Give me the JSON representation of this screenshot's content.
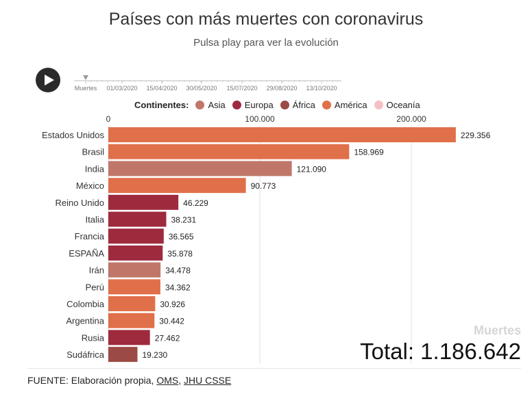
{
  "title": "Países con más muertes con coronavirus",
  "subtitle": "Pulsa play para ver la evolución",
  "timeline": {
    "label": "Muertes",
    "dates": [
      "01/03/2020",
      "15/04/2020",
      "30/05/2020",
      "15/07/2020",
      "29/08/2020",
      "13/10/2020"
    ]
  },
  "legend": {
    "title": "Continentes:",
    "items": [
      {
        "label": "Asia",
        "color": "#c0776a"
      },
      {
        "label": "Europa",
        "color": "#9e2a3e"
      },
      {
        "label": "África",
        "color": "#9c4a45"
      },
      {
        "label": "América",
        "color": "#e0704a"
      },
      {
        "label": "Oceanía",
        "color": "#f4c0c4"
      }
    ]
  },
  "chart_data": {
    "type": "bar",
    "orientation": "horizontal",
    "categories": [
      "Estados Unidos",
      "Brasil",
      "India",
      "México",
      "Reino Unido",
      "Italia",
      "Francia",
      "ESPAÑA",
      "Irán",
      "Perú",
      "Colombia",
      "Argentina",
      "Rusia",
      "Sudáfrica"
    ],
    "values": [
      229356,
      158969,
      121090,
      90773,
      46229,
      38231,
      36565,
      35878,
      34478,
      34362,
      30926,
      30442,
      27462,
      19230
    ],
    "value_labels": [
      "229.356",
      "158.969",
      "121.090",
      "90.773",
      "46.229",
      "38.231",
      "36.565",
      "35.878",
      "34.478",
      "34.362",
      "30.926",
      "30.442",
      "27.462",
      "19.230"
    ],
    "continents": [
      "América",
      "América",
      "Asia",
      "América",
      "Europa",
      "Europa",
      "Europa",
      "Europa",
      "Asia",
      "América",
      "América",
      "América",
      "Europa",
      "África"
    ],
    "xlim": [
      0,
      240000
    ],
    "xticks": [
      0,
      100000,
      200000
    ],
    "xtick_labels": [
      "0",
      "100.000",
      "200.000"
    ],
    "grid": true
  },
  "counter": {
    "label": "Muertes",
    "total": "Total: 1.186.642"
  },
  "source": {
    "prefix": "FUENTE: Elaboración propia, ",
    "link1": "OMS",
    "sep": ", ",
    "link2": "JHU CSSE"
  }
}
